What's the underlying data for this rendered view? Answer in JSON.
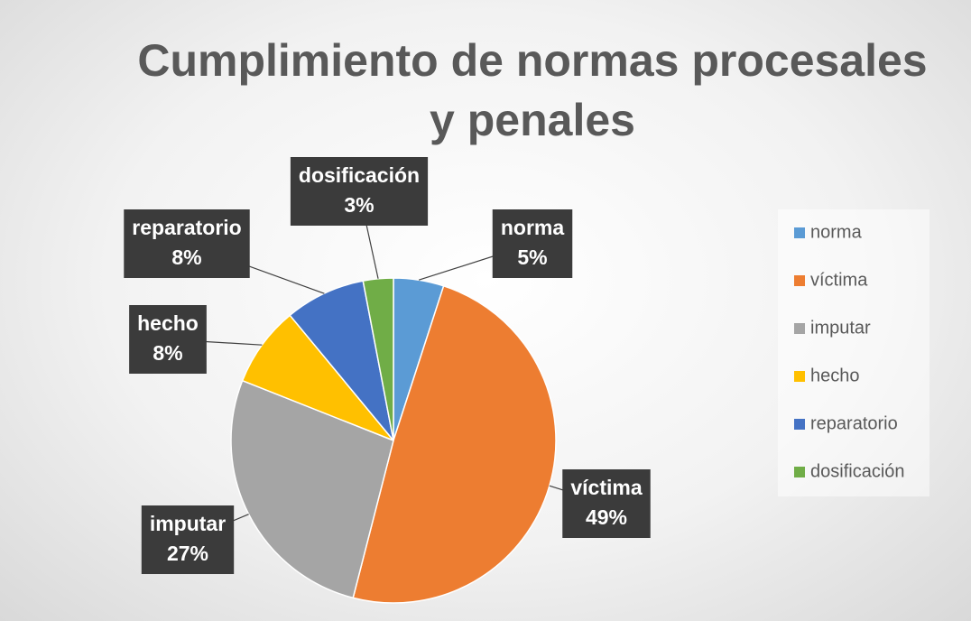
{
  "chart_data": {
    "type": "pie",
    "title": "Cumplimiento de normas procesales y penales",
    "categories": [
      "norma",
      "víctima",
      "imputar",
      "hecho",
      "reparatorio",
      "dosificación"
    ],
    "values": [
      5,
      49,
      27,
      8,
      8,
      3
    ],
    "value_labels": [
      "5%",
      "49%",
      "27%",
      "8%",
      "8%",
      "3%"
    ],
    "colors": [
      "#5b9bd5",
      "#ed7d31",
      "#a5a5a5",
      "#ffc000",
      "#4472c4",
      "#70ad47"
    ],
    "legend": "right"
  }
}
